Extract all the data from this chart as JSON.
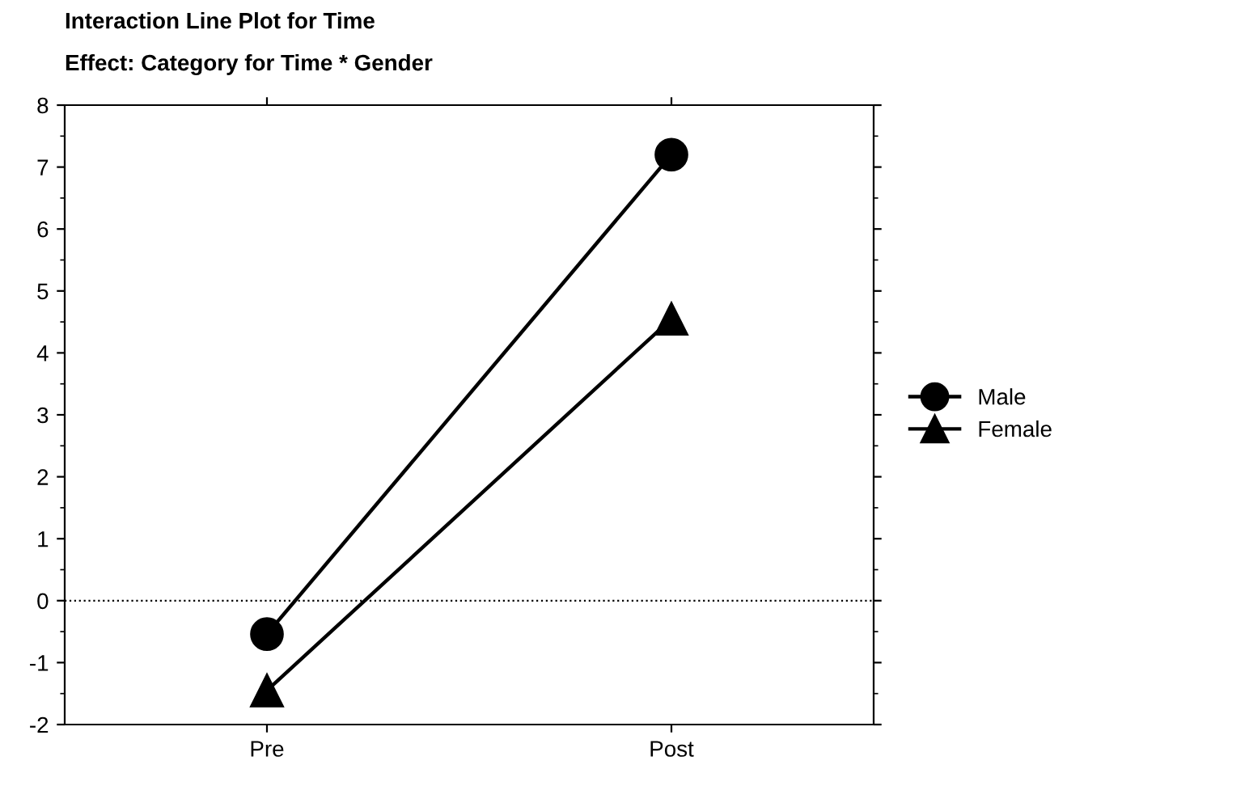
{
  "chart_data": {
    "type": "line",
    "title": "Interaction Line Plot for Time",
    "subtitle": "Effect: Category for Time * Gender",
    "categories": [
      "Pre",
      "Post"
    ],
    "series": [
      {
        "name": "Male",
        "color": "#000000",
        "values": [
          -0.54,
          7.2
        ],
        "marker": "circle"
      },
      {
        "name": "Female",
        "color": "#000000",
        "values": [
          -1.45,
          4.55
        ],
        "marker": "triangle"
      }
    ],
    "ylim": [
      -2,
      8
    ],
    "yticks": [
      -2,
      -1,
      0,
      1,
      2,
      3,
      4,
      5,
      6,
      7,
      8
    ],
    "grid": false,
    "legend": "right",
    "line_style": "solid",
    "ref_lines": [
      {
        "axis": "y",
        "value": 0,
        "color": "#000000",
        "line_style": "dotted"
      }
    ]
  }
}
